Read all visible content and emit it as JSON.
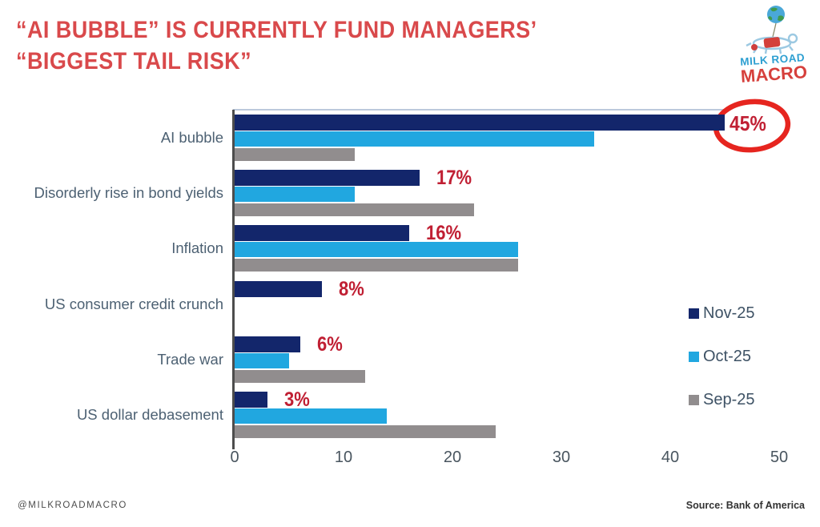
{
  "title": {
    "line1": "“AI BUBBLE” IS CURRENTLY FUND MANAGERS’",
    "line2": "“BIGGEST TAIL RISK”"
  },
  "logo": {
    "top": "MILK ROAD",
    "bottom": "MACRO"
  },
  "colors": {
    "title": "#d9494b",
    "annotation": "#c01f33",
    "circle": "#e6251f",
    "category_label": "#4d6173",
    "axis": "#4d4d4d",
    "nov": "#13266b",
    "oct": "#21a7e0",
    "sep": "#918d8e"
  },
  "chart_data": {
    "type": "bar",
    "orientation": "horizontal",
    "title": "",
    "xlabel": "",
    "ylabel": "",
    "categories": [
      "AI bubble",
      "Disorderly rise in bond yields",
      "Inflation",
      "US consumer credit crunch",
      "Trade war",
      "US dollar debasement"
    ],
    "series": [
      {
        "name": "Nov-25",
        "color": "#13266b",
        "values": [
          45,
          17,
          16,
          8,
          6,
          3
        ]
      },
      {
        "name": "Oct-25",
        "color": "#21a7e0",
        "values": [
          33,
          11,
          26,
          0,
          5,
          14
        ]
      },
      {
        "name": "Sep-25",
        "color": "#918d8e",
        "values": [
          11,
          22,
          26,
          0,
          12,
          24
        ]
      }
    ],
    "annotations": [
      "45%",
      "17%",
      "16%",
      "8%",
      "6%",
      "3%"
    ],
    "highlight": {
      "category": "AI bubble",
      "label": "45%",
      "circled": true
    },
    "xlim": [
      0,
      50
    ],
    "xticks": [
      "0",
      "10",
      "20",
      "30",
      "40",
      "50"
    ],
    "grid": false,
    "legend_position": "middle-right"
  },
  "footer": {
    "handle": "@MILKROADMACRO",
    "source": "Source: Bank of America"
  }
}
